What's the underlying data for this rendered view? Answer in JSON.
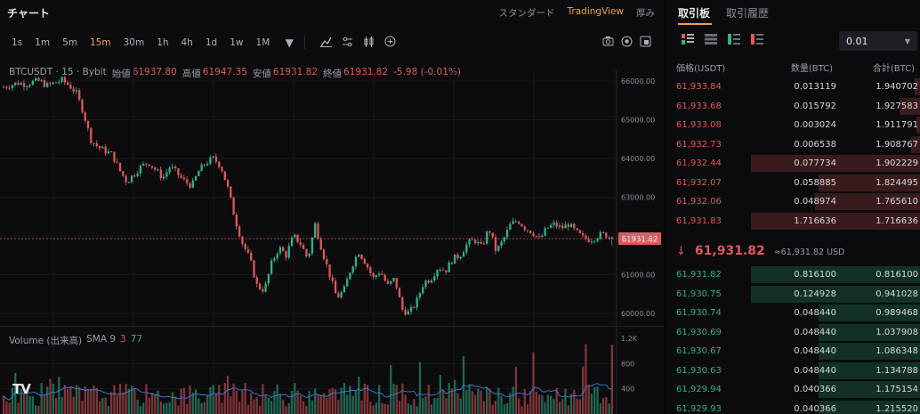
{
  "chart": {
    "title": "チャート",
    "view_tabs": [
      "スタンダード",
      "TradingView",
      "厚み"
    ],
    "active_view": "TradingView",
    "timeframes": [
      "1s",
      "1m",
      "5m",
      "15m",
      "30m",
      "1h",
      "4h",
      "1d",
      "1w",
      "1M"
    ],
    "active_timeframe": "15m",
    "tools": [
      "chevron-down-icon",
      "indicator-icon",
      "settings-icon",
      "candles-icon",
      "plus-icon"
    ],
    "right_tools": [
      "camera-icon",
      "target-icon",
      "fullscreen-icon"
    ],
    "legend": {
      "symbol": "BTCUSDT · 15 · Bybit",
      "open_label": "始値",
      "open": "61937.80",
      "high_label": "高値",
      "high": "61947.35",
      "low_label": "安値",
      "low": "61931.82",
      "close_label": "終値",
      "close": "61931.82",
      "change": "-5.98 (-0.01%)"
    },
    "price_axis": [
      "66000.00",
      "65000.00",
      "64000.00",
      "63000.00",
      "62000.00",
      "61000.00",
      "60000.00"
    ],
    "current_price_tag": "61931.82",
    "volume_legend": {
      "label": "Volume (出来高)",
      "sma": "SMA 9",
      "v1": "3",
      "v2": "77"
    },
    "volume_axis": [
      "1.2K",
      "800",
      "400"
    ],
    "logo": "TV",
    "colors": {
      "up": "#2fb38a",
      "down": "#e05858",
      "accent": "#f0a04b"
    }
  },
  "chart_data": {
    "type": "candlestick",
    "y_range": [
      59700,
      66300
    ],
    "price_path": [
      65850,
      65900,
      65950,
      65920,
      65980,
      66000,
      65880,
      65950,
      66020,
      65900,
      65700,
      65200,
      64500,
      64300,
      64200,
      64100,
      63700,
      63400,
      63600,
      63800,
      63900,
      63700,
      63500,
      63800,
      63600,
      63400,
      63300,
      63700,
      63900,
      64000,
      63800,
      63200,
      62400,
      61800,
      61400,
      60700,
      60600,
      61300,
      61700,
      61500,
      62000,
      61800,
      61400,
      62300,
      61600,
      61000,
      60400,
      60600,
      61200,
      61600,
      61300,
      60900,
      61100,
      60700,
      60900,
      60100,
      60000,
      60300,
      60800,
      60900,
      61200,
      61100,
      61400,
      61500,
      61800,
      61900,
      61700,
      62200,
      61600,
      61900,
      62300,
      62400,
      62200,
      62100,
      61900,
      62200,
      62300,
      62200,
      62300,
      62100,
      61950,
      61900,
      62000,
      62050,
      61931
    ]
  },
  "orderbook": {
    "tabs": [
      "取引板",
      "取引履歴"
    ],
    "active_tab": "取引板",
    "precision": "0.01",
    "headers": {
      "price": "価格(USDT)",
      "qty": "数量(BTC)",
      "total": "合計(BTC)"
    },
    "asks": [
      {
        "price": "61,933.84",
        "qty": "0.013119",
        "total": "1.940702",
        "depth": 0.03
      },
      {
        "price": "61,933.68",
        "qty": "0.015792",
        "total": "1.927583",
        "depth": 0.12
      },
      {
        "price": "61,933.08",
        "qty": "0.003024",
        "total": "1.911791",
        "depth": 0.02
      },
      {
        "price": "61,932.73",
        "qty": "0.006538",
        "total": "1.908767",
        "depth": 0.05
      },
      {
        "price": "61,932.44",
        "qty": "0.077734",
        "total": "1.902229",
        "depth": 1.0
      },
      {
        "price": "61,932.07",
        "qty": "0.058885",
        "total": "1.824495",
        "depth": 0.6
      },
      {
        "price": "61,932.06",
        "qty": "0.048974",
        "total": "1.765610",
        "depth": 0.62
      },
      {
        "price": "61,931.83",
        "qty": "1.716636",
        "total": "1.716636",
        "depth": 1.0
      }
    ],
    "mid_price": "61,931.82",
    "mid_usd": "≈61,931.82 USD",
    "bids": [
      {
        "price": "61,931.82",
        "qty": "0.816100",
        "total": "0.816100",
        "depth": 1.0
      },
      {
        "price": "61,930.75",
        "qty": "0.124928",
        "total": "0.941028",
        "depth": 1.0
      },
      {
        "price": "61,930.74",
        "qty": "0.048440",
        "total": "0.989468",
        "depth": 0.6
      },
      {
        "price": "61,930.69",
        "qty": "0.048440",
        "total": "1.037908",
        "depth": 0.6
      },
      {
        "price": "61,930.67",
        "qty": "0.048440",
        "total": "1.086348",
        "depth": 0.6
      },
      {
        "price": "61,930.63",
        "qty": "0.048440",
        "total": "1.134788",
        "depth": 0.6
      },
      {
        "price": "61,929.94",
        "qty": "0.040366",
        "total": "1.175154",
        "depth": 0.6
      },
      {
        "price": "61,929.93",
        "qty": "0.040366",
        "total": "1.215520",
        "depth": 0.6
      }
    ]
  }
}
